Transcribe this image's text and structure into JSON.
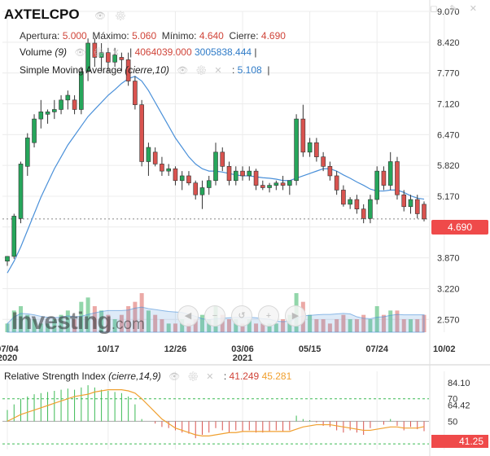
{
  "header": {
    "symbol": "AXTELCPO",
    "ohlc": {
      "open_label": "Apertura:",
      "open": "5.000",
      "high_label": "Máximo:",
      "high": "5.060",
      "low_label": "Mínimo:",
      "low": "4.640",
      "close_label": "Cierre:",
      "close": "4.690"
    },
    "volume": {
      "label": "Volume",
      "param": "(9)",
      "value1": "4064039.000",
      "value2": "3005838.444"
    },
    "sma": {
      "label": "Simple Moving Average",
      "param": "(cierre,10)",
      "value": "5.108"
    }
  },
  "rsi": {
    "label": "Relative Strength Index",
    "param": "(cierre,14,9)",
    "value1": "41.249",
    "value2": "45.281",
    "current": "41.25"
  },
  "price_tag": "4.690",
  "logo": {
    "text": "Investing",
    "suffix": ".com"
  },
  "colors": {
    "up": "#26a65b",
    "down": "#d9534f",
    "sma": "#4a90d9",
    "rsi_signal": "#f0a030",
    "grid": "#ececec"
  },
  "chart_data": [
    {
      "type": "candlestick",
      "title": "AXTELCPO",
      "x_ticks": [
        {
          "label": "07/04",
          "year": "2020",
          "index": 0
        },
        {
          "label": "10/17",
          "year": "",
          "index": 15
        },
        {
          "label": "12/26",
          "year": "",
          "index": 25
        },
        {
          "label": "03/06",
          "year": "2021",
          "index": 35
        },
        {
          "label": "05/15",
          "year": "",
          "index": 45
        },
        {
          "label": "07/24",
          "year": "",
          "index": 55
        },
        {
          "label": "10/02",
          "year": "",
          "index": 65
        }
      ],
      "y_ticks": [
        "9.070",
        "8.420",
        "7.770",
        "7.120",
        "6.470",
        "5.820",
        "5.170",
        "4.520",
        "3.870",
        "3.220",
        "2.570"
      ],
      "ylim": [
        2.3,
        9.07
      ],
      "last_price_line": 4.69,
      "candles": [
        [
          3.8,
          3.9,
          3.7,
          3.9
        ],
        [
          3.9,
          4.8,
          3.85,
          4.75
        ],
        [
          4.7,
          5.9,
          4.6,
          5.85
        ],
        [
          5.8,
          6.5,
          5.6,
          6.4
        ],
        [
          6.3,
          6.9,
          6.2,
          6.8
        ],
        [
          6.8,
          7.2,
          6.6,
          6.95
        ],
        [
          6.9,
          7.0,
          6.7,
          6.95
        ],
        [
          6.95,
          7.2,
          6.8,
          7.0
        ],
        [
          7.0,
          7.3,
          6.9,
          7.2
        ],
        [
          7.2,
          7.4,
          7.0,
          7.3
        ],
        [
          7.2,
          7.3,
          6.9,
          7.0
        ],
        [
          7.0,
          7.9,
          6.9,
          7.8
        ],
        [
          7.8,
          8.5,
          7.6,
          8.4
        ],
        [
          8.4,
          8.5,
          7.9,
          8.1
        ],
        [
          8.1,
          8.4,
          7.8,
          8.2
        ],
        [
          8.2,
          8.3,
          7.8,
          8.0
        ],
        [
          8.0,
          8.3,
          7.9,
          8.15
        ],
        [
          8.1,
          8.2,
          7.8,
          8.05
        ],
        [
          8.05,
          8.2,
          7.5,
          7.6
        ],
        [
          7.6,
          7.7,
          7.0,
          7.1
        ],
        [
          7.1,
          7.2,
          5.8,
          5.9
        ],
        [
          5.9,
          6.3,
          5.6,
          6.2
        ],
        [
          6.1,
          6.2,
          5.8,
          5.85
        ],
        [
          5.85,
          6.0,
          5.6,
          5.7
        ],
        [
          5.7,
          5.85,
          5.6,
          5.75
        ],
        [
          5.75,
          5.8,
          5.4,
          5.5
        ],
        [
          5.5,
          5.7,
          5.3,
          5.6
        ],
        [
          5.6,
          5.7,
          5.4,
          5.45
        ],
        [
          5.45,
          5.5,
          5.1,
          5.2
        ],
        [
          5.2,
          5.5,
          4.9,
          5.35
        ],
        [
          5.35,
          5.6,
          5.2,
          5.5
        ],
        [
          5.5,
          6.3,
          5.4,
          6.1
        ],
        [
          6.1,
          6.2,
          5.7,
          5.8
        ],
        [
          5.8,
          5.9,
          5.4,
          5.5
        ],
        [
          5.5,
          5.8,
          5.4,
          5.7
        ],
        [
          5.7,
          5.8,
          5.5,
          5.6
        ],
        [
          5.6,
          5.8,
          5.5,
          5.7
        ],
        [
          5.7,
          5.75,
          5.3,
          5.4
        ],
        [
          5.4,
          5.5,
          5.3,
          5.35
        ],
        [
          5.35,
          5.45,
          5.25,
          5.4
        ],
        [
          5.4,
          5.5,
          5.3,
          5.45
        ],
        [
          5.45,
          5.6,
          5.3,
          5.4
        ],
        [
          5.4,
          5.5,
          5.2,
          5.5
        ],
        [
          5.5,
          6.9,
          5.4,
          6.8
        ],
        [
          6.8,
          7.1,
          6.0,
          6.1
        ],
        [
          6.1,
          6.4,
          6.0,
          6.3
        ],
        [
          6.3,
          6.4,
          5.9,
          6.0
        ],
        [
          6.0,
          6.1,
          5.7,
          5.8
        ],
        [
          5.8,
          5.9,
          5.5,
          5.6
        ],
        [
          5.6,
          5.7,
          5.2,
          5.3
        ],
        [
          5.3,
          5.4,
          4.95,
          5.0
        ],
        [
          5.0,
          5.15,
          4.9,
          5.1
        ],
        [
          5.1,
          5.2,
          4.8,
          4.9
        ],
        [
          4.9,
          5.0,
          4.6,
          4.7
        ],
        [
          4.7,
          5.2,
          4.6,
          5.1
        ],
        [
          5.1,
          5.8,
          5.0,
          5.7
        ],
        [
          5.7,
          5.8,
          5.3,
          5.4
        ],
        [
          5.4,
          6.1,
          5.3,
          5.9
        ],
        [
          5.9,
          6.0,
          5.1,
          5.2
        ],
        [
          5.2,
          5.3,
          4.85,
          4.95
        ],
        [
          4.95,
          5.2,
          4.8,
          5.1
        ],
        [
          5.1,
          5.2,
          4.7,
          4.8
        ],
        [
          5.0,
          5.06,
          4.64,
          4.69
        ]
      ],
      "sma_values": [
        3.55,
        3.8,
        4.1,
        4.45,
        4.8,
        5.15,
        5.45,
        5.75,
        6.0,
        6.25,
        6.45,
        6.65,
        6.85,
        7.0,
        7.15,
        7.3,
        7.42,
        7.55,
        7.65,
        7.7,
        7.6,
        7.4,
        7.15,
        6.9,
        6.65,
        6.4,
        6.2,
        6.0,
        5.85,
        5.75,
        5.7,
        5.7,
        5.68,
        5.65,
        5.62,
        5.6,
        5.6,
        5.58,
        5.56,
        5.55,
        5.53,
        5.5,
        5.5,
        5.55,
        5.6,
        5.65,
        5.7,
        5.75,
        5.75,
        5.7,
        5.62,
        5.55,
        5.47,
        5.4,
        5.32,
        5.28,
        5.28,
        5.3,
        5.3,
        5.25,
        5.18,
        5.13,
        5.108
      ],
      "volume_values": [
        2,
        5,
        6,
        4,
        3,
        2,
        2,
        3,
        4,
        5,
        3,
        7,
        8,
        6,
        5,
        4,
        3,
        4,
        6,
        7,
        9,
        5,
        4,
        3,
        2,
        2,
        3,
        2,
        3,
        4,
        3,
        6,
        4,
        3,
        3,
        2,
        3,
        2,
        2,
        2,
        2,
        3,
        4,
        9,
        7,
        4,
        3,
        3,
        2,
        3,
        4,
        3,
        3,
        4,
        3,
        6,
        4,
        5,
        5,
        3,
        3,
        3,
        4
      ],
      "volume_current": "4064039.000",
      "volume_ma": "3005838.444"
    },
    {
      "type": "line",
      "title": "Relative Strength Index",
      "y_ticks": [
        "84.10",
        "70",
        "64.42",
        "50"
      ],
      "ylim": [
        25,
        90
      ],
      "reference_lines": [
        70,
        50,
        30
      ],
      "rsi_values": [
        60,
        65,
        70,
        72,
        74,
        75,
        76,
        77,
        78,
        79,
        78,
        80,
        82,
        80,
        78,
        77,
        76,
        75,
        72,
        65,
        52,
        50,
        48,
        45,
        44,
        42,
        40,
        39,
        35,
        38,
        40,
        44,
        42,
        40,
        42,
        41,
        42,
        40,
        40,
        41,
        42,
        41,
        42,
        55,
        52,
        51,
        49,
        46,
        45,
        42,
        40,
        42,
        40,
        38,
        44,
        50,
        47,
        52,
        46,
        42,
        45,
        43,
        41.25
      ],
      "signal_values": [
        50,
        53,
        56,
        58,
        60,
        62,
        64,
        66,
        68,
        70,
        72,
        73,
        74,
        76,
        77,
        78,
        78,
        78,
        77,
        75,
        70,
        64,
        58,
        52,
        48,
        44,
        42,
        40,
        38,
        37,
        37,
        38,
        39,
        40,
        40,
        41,
        41,
        41,
        41,
        41,
        41,
        41,
        41,
        43,
        45,
        46,
        47,
        47,
        47,
        46,
        45,
        44,
        43,
        42,
        42,
        43,
        44,
        45,
        45,
        44,
        44,
        44,
        45.281
      ],
      "current_value": "41.249",
      "signal_current": "45.281"
    }
  ]
}
